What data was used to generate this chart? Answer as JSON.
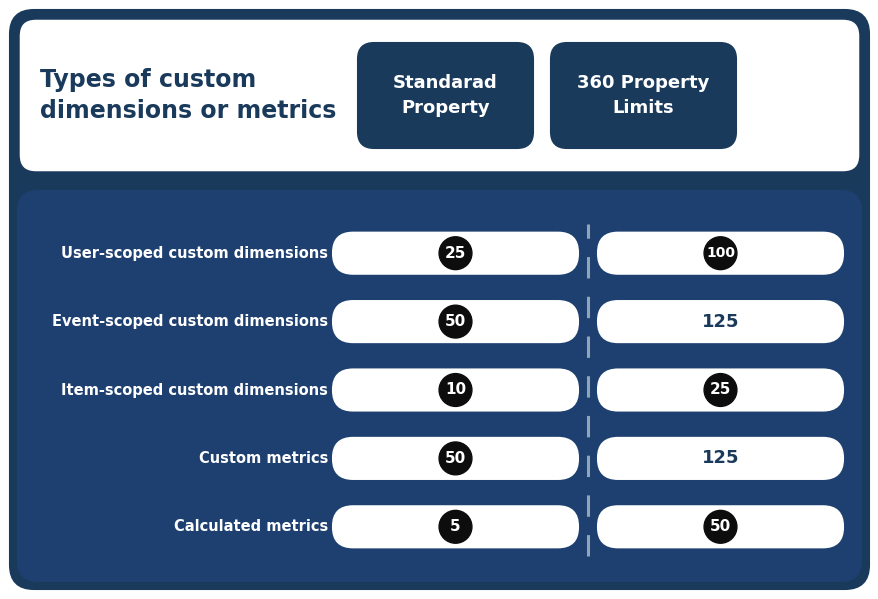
{
  "title_text": "Types of custom\ndimensions or metrics",
  "header_col1": "Standarad\nProperty",
  "header_col2": "360 Property\nLimits",
  "rows": [
    {
      "label": "User-scoped custom dimensions",
      "val1": "25",
      "val2": "100",
      "val1_circle": true,
      "val2_circle": true
    },
    {
      "label": "Event-scoped custom dimensions",
      "val1": "50",
      "val2": "125",
      "val1_circle": true,
      "val2_circle": false
    },
    {
      "label": "Item-scoped custom dimensions",
      "val1": "10",
      "val2": "25",
      "val1_circle": true,
      "val2_circle": true
    },
    {
      "label": "Custom metrics",
      "val1": "50",
      "val2": "125",
      "val1_circle": true,
      "val2_circle": false
    },
    {
      "label": "Calculated metrics",
      "val1": "5",
      "val2": "50",
      "val1_circle": true,
      "val2_circle": true
    }
  ],
  "outer_bg": "#1a3a5c",
  "dark_blue": "#1a3a5c",
  "panel_blue": "#1e4070",
  "white": "#ffffff",
  "black": "#0d0d0d",
  "gray_dashed": "#8fa5b8",
  "fig_bg": "#ffffff"
}
